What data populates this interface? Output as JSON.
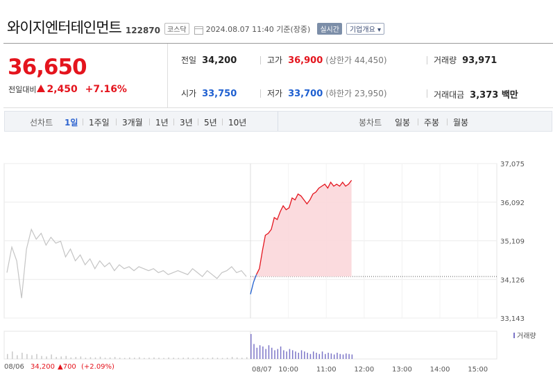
{
  "header": {
    "company": "와이지엔터테인먼트",
    "code": "122870",
    "market": "코스닥",
    "timestamp": "2024.08.07 11:40 기준(장중)",
    "realtime": "실시간",
    "overview": "기업개요 ▾"
  },
  "quote": {
    "price": "36,650",
    "change_label": "전일대비",
    "change": "2,450",
    "change_pct": "+7.16%",
    "prev_label": "전일",
    "prev": "34,200",
    "high_label": "고가",
    "high": "36,900",
    "upper_limit": "(상한가 44,450)",
    "volume_label": "거래량",
    "volume": "93,971",
    "open_label": "시가",
    "open": "33,750",
    "low_label": "저가",
    "low": "33,700",
    "lower_limit": "(하한가 23,950)",
    "amount_label": "거래대금",
    "amount": "3,373 백만"
  },
  "tabs": {
    "line_label": "선차트",
    "line": [
      "1일",
      "1주일",
      "3개월",
      "1년",
      "3년",
      "5년",
      "10년"
    ],
    "active": "1일",
    "candle_label": "봉차트",
    "candle": [
      "일봉",
      "주봉",
      "월봉"
    ]
  },
  "colors": {
    "up": "#e4141d",
    "down": "#1e5fd0",
    "area": "#fbd7da",
    "prevday": "#c4c4c4",
    "volume": "#7b74c7"
  },
  "chart_data": {
    "type": "line",
    "y_ticks": [
      "37,075",
      "36,092",
      "35,109",
      "34,126",
      "33,143"
    ],
    "ylim": [
      33143,
      37075
    ],
    "x_ticks": [
      "08/07",
      "10:00",
      "11:00",
      "12:00",
      "13:00",
      "14:00",
      "15:00"
    ],
    "reference_price": 34200,
    "prev_day": {
      "date": "08/06",
      "close": "34,200",
      "change": "700",
      "change_pct": "(+2.09%)",
      "values": [
        34300,
        34950,
        34600,
        33650,
        34900,
        35400,
        35150,
        35300,
        35000,
        35200,
        35050,
        35100,
        34700,
        34900,
        34600,
        34750,
        34500,
        34650,
        34400,
        34600,
        34450,
        34550,
        34350,
        34500,
        34400,
        34450,
        34350,
        34450,
        34400,
        34350,
        34400,
        34300,
        34350,
        34250,
        34300,
        34350,
        34300,
        34250,
        34400,
        34300,
        34200,
        34350,
        34250,
        34150,
        34300,
        34350,
        34450,
        34300,
        34350,
        34200
      ]
    },
    "series": [
      {
        "values": [
          33750,
          34050,
          34250,
          34400,
          34850,
          35250,
          35300,
          35400,
          35700,
          35650,
          35850,
          36000,
          35900,
          35950,
          36200,
          36150,
          36300,
          36250,
          36150,
          36050,
          36150,
          36300,
          36350,
          36450,
          36500,
          36550,
          36450,
          36600,
          36500,
          36550,
          36500,
          36600,
          36500,
          36550,
          36650
        ]
      }
    ],
    "volume_label": "거래량",
    "volume": {
      "prev_day": [
        0.2,
        0.3,
        0.15,
        0.25,
        0.2,
        0.15,
        0.2,
        0.12,
        0.1,
        0.18,
        0.08,
        0.1,
        0.12,
        0.06,
        0.08,
        0.1,
        0.05,
        0.07,
        0.06,
        0.09,
        0.05,
        0.06,
        0.08,
        0.05,
        0.04,
        0.06,
        0.05,
        0.07,
        0.04,
        0.05,
        0.06,
        0.05,
        0.04,
        0.06,
        0.05,
        0.04,
        0.05,
        0.06,
        0.04,
        0.05,
        0.05,
        0.04,
        0.06,
        0.05,
        0.04,
        0.05,
        0.08,
        0.06,
        0.05,
        0.07
      ],
      "today": [
        1.0,
        0.6,
        0.45,
        0.55,
        0.5,
        0.4,
        0.55,
        0.45,
        0.35,
        0.4,
        0.5,
        0.35,
        0.3,
        0.4,
        0.35,
        0.3,
        0.25,
        0.35,
        0.3,
        0.25,
        0.2,
        0.3,
        0.25,
        0.2,
        0.3,
        0.2,
        0.25,
        0.22,
        0.18,
        0.25,
        0.2,
        0.18,
        0.22,
        0.2,
        0.18
      ]
    }
  }
}
